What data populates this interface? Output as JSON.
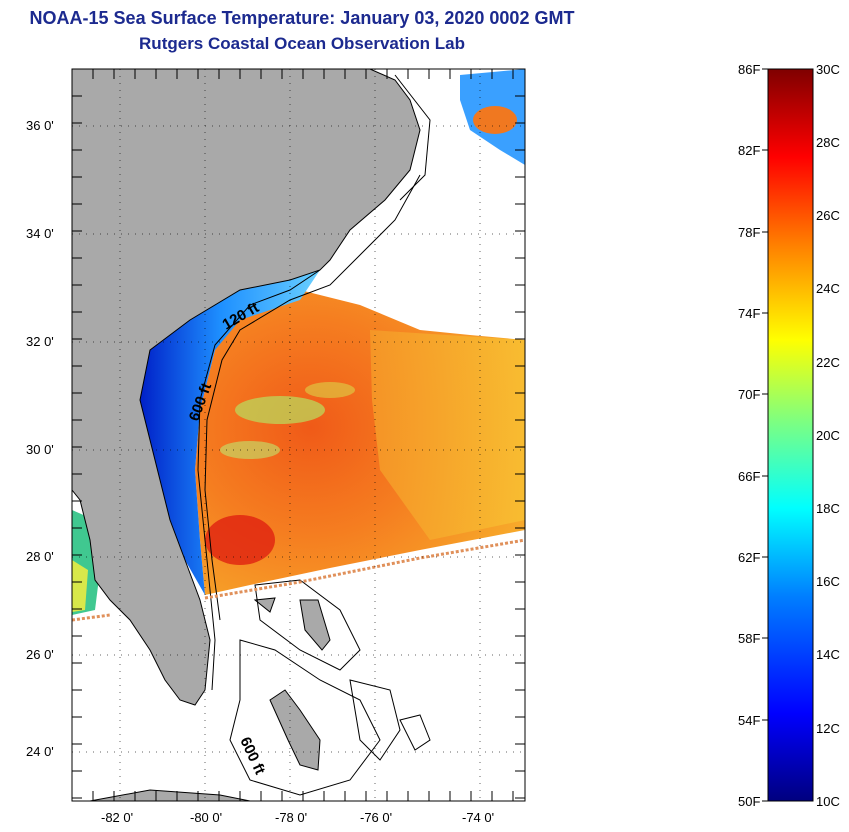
{
  "title": {
    "line1": "NOAA-15 Sea Surface Temperature:  January 03, 2020 0002 GMT",
    "line2": "Rutgers Coastal Ocean Observation Lab"
  },
  "map": {
    "lat_labels": [
      "36 0'",
      "34 0'",
      "32 0'",
      "30 0'",
      "28 0'",
      "26 0'",
      "24 0'"
    ],
    "lon_labels": [
      "-82 0'",
      "-80 0'",
      "-78 0'",
      "-76 0'",
      "-74 0'"
    ],
    "contour_labels": [
      "120 ft",
      "600 ft",
      "600 ft"
    ]
  },
  "colorbar": {
    "f_labels": [
      "86F",
      "82F",
      "78F",
      "74F",
      "70F",
      "66F",
      "62F",
      "58F",
      "54F",
      "50F"
    ],
    "c_labels": [
      "30C",
      "28C",
      "26C",
      "24C",
      "22C",
      "20C",
      "18C",
      "16C",
      "14C",
      "12C",
      "10C"
    ],
    "range_c": [
      10,
      30
    ],
    "range_f": [
      50,
      86
    ],
    "colors": [
      "#00007f",
      "#0000ff",
      "#007fff",
      "#00ffff",
      "#7fff7f",
      "#ffff00",
      "#ff7f00",
      "#ff0000",
      "#7f0000"
    ]
  },
  "colors": {
    "title": "#1c2a8f",
    "land": "#a9a9a9",
    "warm_sea": "#f07a1a"
  }
}
